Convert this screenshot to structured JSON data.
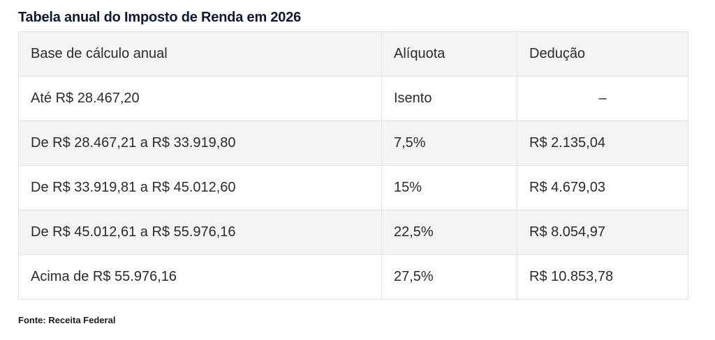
{
  "title": "Tabela anual do Imposto de Renda em 2026",
  "table": {
    "headers": [
      "Base de cálculo anual",
      "Alíquota",
      "Dedução"
    ],
    "rows": [
      [
        "Até R$ 28.467,20",
        "Isento",
        "–"
      ],
      [
        "De R$ 28.467,21 a R$ 33.919,80",
        "7,5%",
        "R$ 2.135,04"
      ],
      [
        "De R$ 33.919,81 a R$ 45.012,60",
        "15%",
        "R$ 4.679,03"
      ],
      [
        "De R$ 45.012,61 a R$ 55.976,16",
        "22,5%",
        "R$ 8.054,97"
      ],
      [
        "Acima de R$ 55.976,16",
        "27,5%",
        "R$ 10.853,78"
      ]
    ]
  },
  "source": "Fonte: Receita Federal"
}
